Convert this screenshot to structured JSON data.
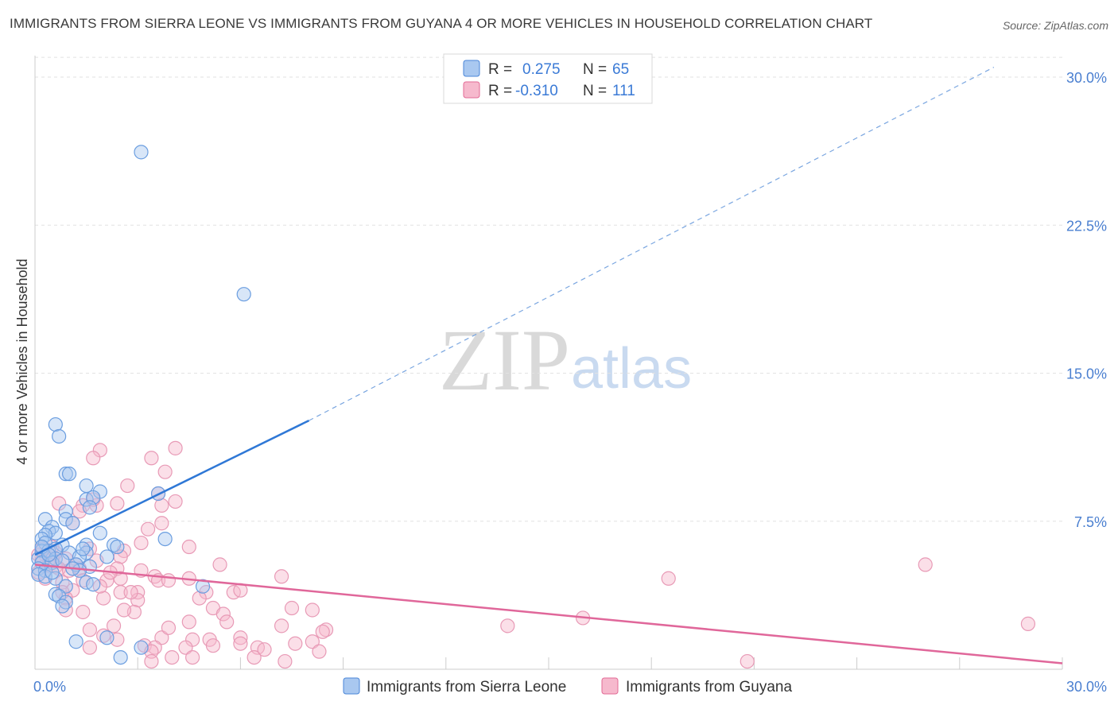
{
  "title": "IMMIGRANTS FROM SIERRA LEONE VS IMMIGRANTS FROM GUYANA 4 OR MORE VEHICLES IN HOUSEHOLD CORRELATION CHART",
  "source": "Source: ZipAtlas.com",
  "watermark": {
    "zip": "ZIP",
    "atlas": "atlas"
  },
  "colors": {
    "blue": "#4a86d8",
    "blue_fill": "#a9c8f0",
    "blue_line": "#2f78d6",
    "pink": "#e36a95",
    "pink_fill": "#f6b9cd",
    "pink_line": "#e0679a",
    "tick": "#4a7fd0"
  },
  "legend": {
    "r_label": "R =",
    "n_label": "N =",
    "series1": {
      "r": "0.275",
      "n": "65"
    },
    "series2": {
      "r": "-0.310",
      "n": "111"
    }
  },
  "chart_data": {
    "type": "scatter",
    "title": "IMMIGRANTS FROM SIERRA LEONE VS IMMIGRANTS FROM GUYANA 4 OR MORE VEHICLES IN HOUSEHOLD CORRELATION CHART",
    "xlabel": "",
    "ylabel": "4 or more Vehicles in Household",
    "xlim": [
      0,
      30
    ],
    "ylim": [
      0,
      31
    ],
    "x_ticks": [
      0,
      30
    ],
    "x_tick_labels": [
      "0.0%",
      "30.0%"
    ],
    "y_ticks": [
      7.5,
      15.0,
      22.5,
      30.0
    ],
    "y_tick_labels": [
      "7.5%",
      "15.0%",
      "22.5%",
      "30.0%"
    ],
    "series": [
      {
        "name": "Immigrants from Sierra Leone",
        "color": "#4a86d8",
        "r": 0.275,
        "n": 65,
        "trend": {
          "x0": 0.0,
          "y0": 5.8,
          "x1": 8.0,
          "y1": 12.6,
          "dash_to_x": 28.0,
          "dash_to_y": 30.5
        },
        "points": [
          [
            3.1,
            26.2
          ],
          [
            6.1,
            19.0
          ],
          [
            0.6,
            12.4
          ],
          [
            0.7,
            11.8
          ],
          [
            0.9,
            9.9
          ],
          [
            1.0,
            9.9
          ],
          [
            1.5,
            9.3
          ],
          [
            1.9,
            9.0
          ],
          [
            3.6,
            8.9
          ],
          [
            1.5,
            8.6
          ],
          [
            1.7,
            8.7
          ],
          [
            0.9,
            8.0
          ],
          [
            1.6,
            8.2
          ],
          [
            0.3,
            7.6
          ],
          [
            0.9,
            7.6
          ],
          [
            1.1,
            7.4
          ],
          [
            0.5,
            7.2
          ],
          [
            0.4,
            7.0
          ],
          [
            0.6,
            6.9
          ],
          [
            1.9,
            6.9
          ],
          [
            0.3,
            6.8
          ],
          [
            0.2,
            6.6
          ],
          [
            3.8,
            6.6
          ],
          [
            0.3,
            6.4
          ],
          [
            0.8,
            6.3
          ],
          [
            1.5,
            6.3
          ],
          [
            2.3,
            6.3
          ],
          [
            2.4,
            6.2
          ],
          [
            0.2,
            6.0
          ],
          [
            0.4,
            6.0
          ],
          [
            0.6,
            6.1
          ],
          [
            1.0,
            5.9
          ],
          [
            1.5,
            5.9
          ],
          [
            0.1,
            5.6
          ],
          [
            0.6,
            5.6
          ],
          [
            1.3,
            5.7
          ],
          [
            2.1,
            5.7
          ],
          [
            0.2,
            5.4
          ],
          [
            0.5,
            5.4
          ],
          [
            1.2,
            5.3
          ],
          [
            1.6,
            5.2
          ],
          [
            0.1,
            5.1
          ],
          [
            0.3,
            5.0
          ],
          [
            1.3,
            5.0
          ],
          [
            0.1,
            4.8
          ],
          [
            0.3,
            4.7
          ],
          [
            0.6,
            4.6
          ],
          [
            1.5,
            4.4
          ],
          [
            1.7,
            4.3
          ],
          [
            0.9,
            4.2
          ],
          [
            4.9,
            4.2
          ],
          [
            0.6,
            3.8
          ],
          [
            0.7,
            3.7
          ],
          [
            0.9,
            3.4
          ],
          [
            0.8,
            3.2
          ],
          [
            2.1,
            1.6
          ],
          [
            1.2,
            1.4
          ],
          [
            3.1,
            1.1
          ],
          [
            2.5,
            0.6
          ],
          [
            0.2,
            6.2
          ],
          [
            0.4,
            5.8
          ],
          [
            0.8,
            5.5
          ],
          [
            1.1,
            5.1
          ],
          [
            0.5,
            4.9
          ],
          [
            1.4,
            6.1
          ]
        ]
      },
      {
        "name": "Immigrants from Guyana",
        "color": "#e36a95",
        "r": -0.31,
        "n": 111,
        "trend": {
          "x0": 0.0,
          "y0": 5.3,
          "x1": 30.0,
          "y1": 0.3
        },
        "points": [
          [
            4.1,
            11.2
          ],
          [
            1.9,
            11.1
          ],
          [
            1.7,
            10.7
          ],
          [
            3.4,
            10.7
          ],
          [
            3.8,
            10.0
          ],
          [
            2.7,
            9.3
          ],
          [
            3.6,
            8.9
          ],
          [
            4.1,
            8.5
          ],
          [
            2.4,
            8.4
          ],
          [
            3.7,
            8.3
          ],
          [
            0.7,
            8.4
          ],
          [
            1.4,
            8.3
          ],
          [
            1.8,
            8.3
          ],
          [
            1.7,
            8.6
          ],
          [
            1.3,
            8.0
          ],
          [
            1.1,
            7.4
          ],
          [
            3.7,
            7.4
          ],
          [
            3.3,
            7.1
          ],
          [
            4.5,
            6.2
          ],
          [
            3.1,
            6.4
          ],
          [
            1.6,
            6.1
          ],
          [
            2.6,
            6.0
          ],
          [
            2.5,
            5.7
          ],
          [
            0.3,
            5.8
          ],
          [
            0.5,
            5.6
          ],
          [
            0.9,
            5.6
          ],
          [
            0.1,
            5.8
          ],
          [
            0.2,
            5.5
          ],
          [
            0.4,
            5.3
          ],
          [
            0.6,
            5.2
          ],
          [
            0.7,
            5.1
          ],
          [
            1.0,
            5.0
          ],
          [
            1.3,
            5.1
          ],
          [
            2.4,
            5.1
          ],
          [
            3.1,
            5.0
          ],
          [
            5.4,
            5.3
          ],
          [
            7.2,
            4.7
          ],
          [
            18.5,
            4.6
          ],
          [
            26.0,
            5.3
          ],
          [
            0.1,
            4.9
          ],
          [
            0.3,
            4.6
          ],
          [
            0.8,
            4.4
          ],
          [
            1.4,
            4.5
          ],
          [
            2.1,
            4.5
          ],
          [
            2.5,
            4.6
          ],
          [
            3.5,
            4.7
          ],
          [
            3.6,
            4.5
          ],
          [
            4.5,
            4.6
          ],
          [
            1.1,
            4.0
          ],
          [
            2.5,
            3.9
          ],
          [
            3.0,
            3.9
          ],
          [
            5.8,
            3.9
          ],
          [
            6.0,
            4.0
          ],
          [
            0.9,
            3.6
          ],
          [
            2.0,
            3.6
          ],
          [
            3.0,
            3.5
          ],
          [
            5.0,
            3.9
          ],
          [
            0.9,
            3.0
          ],
          [
            1.4,
            2.9
          ],
          [
            2.9,
            2.9
          ],
          [
            5.2,
            3.1
          ],
          [
            7.5,
            3.1
          ],
          [
            8.1,
            3.0
          ],
          [
            5.5,
            2.8
          ],
          [
            4.5,
            2.4
          ],
          [
            1.6,
            2.0
          ],
          [
            2.3,
            2.2
          ],
          [
            7.2,
            2.2
          ],
          [
            8.5,
            2.0
          ],
          [
            13.8,
            2.2
          ],
          [
            16.0,
            2.6
          ],
          [
            29.0,
            2.3
          ],
          [
            2.0,
            1.7
          ],
          [
            2.4,
            1.5
          ],
          [
            3.7,
            1.6
          ],
          [
            4.6,
            1.5
          ],
          [
            5.1,
            1.5
          ],
          [
            6.0,
            1.6
          ],
          [
            8.4,
            1.9
          ],
          [
            8.1,
            1.4
          ],
          [
            7.6,
            1.3
          ],
          [
            3.2,
            1.2
          ],
          [
            3.5,
            1.1
          ],
          [
            4.4,
            1.1
          ],
          [
            5.2,
            1.2
          ],
          [
            6.0,
            1.3
          ],
          [
            6.5,
            1.1
          ],
          [
            3.4,
            0.9
          ],
          [
            4.0,
            0.6
          ],
          [
            4.6,
            0.6
          ],
          [
            6.4,
            0.6
          ],
          [
            7.3,
            0.4
          ],
          [
            8.3,
            0.9
          ],
          [
            3.4,
            0.4
          ],
          [
            1.6,
            1.1
          ],
          [
            20.8,
            0.4
          ],
          [
            0.2,
            6.1
          ],
          [
            0.5,
            6.2
          ],
          [
            0.6,
            5.9
          ],
          [
            1.8,
            5.5
          ],
          [
            2.2,
            4.9
          ],
          [
            1.9,
            4.2
          ],
          [
            0.8,
            3.9
          ],
          [
            3.9,
            4.5
          ],
          [
            4.8,
            3.6
          ],
          [
            2.8,
            3.9
          ],
          [
            1.2,
            5.3
          ],
          [
            2.6,
            3.0
          ],
          [
            3.9,
            2.1
          ],
          [
            5.6,
            2.4
          ],
          [
            6.7,
            1.0
          ]
        ]
      }
    ]
  },
  "bottom_legend": [
    {
      "label": "Immigrants from Sierra Leone"
    },
    {
      "label": "Immigrants from Guyana"
    }
  ]
}
